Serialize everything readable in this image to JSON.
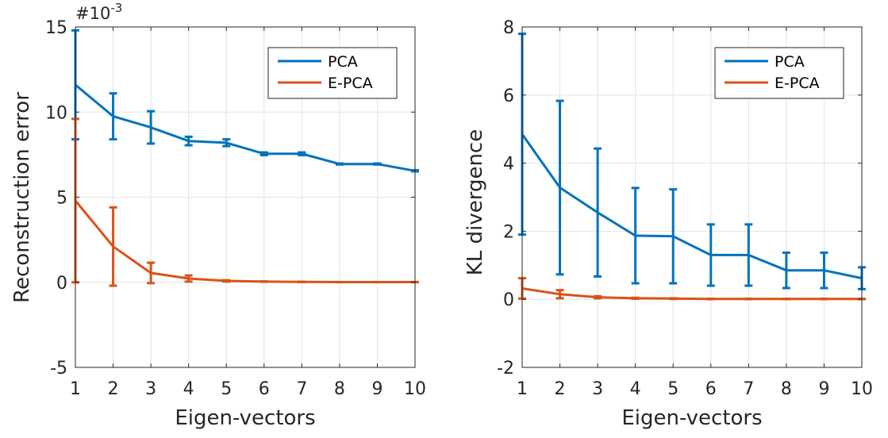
{
  "chart_data": [
    {
      "type": "line",
      "xlabel": "Eigen-vectors",
      "ylabel": "Reconstruction error",
      "exponent_label": {
        "base": "#10",
        "power": "-3"
      },
      "xlim": [
        1,
        10
      ],
      "ylim": [
        -5,
        15
      ],
      "xticks": [
        "1",
        "2",
        "3",
        "4",
        "5",
        "6",
        "7",
        "8",
        "9",
        "10"
      ],
      "yticks": [
        "-5",
        "0",
        "5",
        "10",
        "15"
      ],
      "ytick_values": [
        -5,
        0,
        5,
        10,
        15
      ],
      "grid": true,
      "legend_position": "top-right",
      "x": [
        1,
        2,
        3,
        4,
        5,
        6,
        7,
        8,
        9,
        10
      ],
      "series": [
        {
          "name": "PCA",
          "color": "#0072BD",
          "values": [
            11.6,
            9.75,
            9.1,
            8.3,
            8.2,
            7.55,
            7.55,
            6.95,
            6.95,
            6.55
          ],
          "errors": [
            3.2,
            1.35,
            0.95,
            0.25,
            0.2,
            0.08,
            0.08,
            0.03,
            0.03,
            0.03
          ]
        },
        {
          "name": "E-PCA",
          "color": "#D95319",
          "values": [
            4.8,
            2.1,
            0.55,
            0.22,
            0.08,
            0.04,
            0.02,
            0.01,
            0.01,
            0.01
          ],
          "errors": [
            4.8,
            2.3,
            0.6,
            0.18,
            0.04,
            0.01,
            0.01,
            0.005,
            0.005,
            0.005
          ]
        }
      ]
    },
    {
      "type": "line",
      "xlabel": "Eigen-vectors",
      "ylabel": "KL divergence",
      "xlim": [
        1,
        10
      ],
      "ylim": [
        -2,
        8
      ],
      "xticks": [
        "1",
        "2",
        "3",
        "4",
        "5",
        "6",
        "7",
        "8",
        "9",
        "10"
      ],
      "yticks": [
        "-2",
        "0",
        "2",
        "4",
        "6",
        "8"
      ],
      "ytick_values": [
        -2,
        0,
        2,
        4,
        6,
        8
      ],
      "grid": true,
      "legend_position": "top-right",
      "x": [
        1,
        2,
        3,
        4,
        5,
        6,
        7,
        8,
        9,
        10
      ],
      "series": [
        {
          "name": "PCA",
          "color": "#0072BD",
          "values": [
            4.85,
            3.28,
            2.55,
            1.87,
            1.85,
            1.3,
            1.3,
            0.85,
            0.85,
            0.62
          ],
          "errors": [
            2.95,
            2.55,
            1.88,
            1.4,
            1.38,
            0.9,
            0.9,
            0.52,
            0.52,
            0.32
          ]
        },
        {
          "name": "E-PCA",
          "color": "#D95319",
          "values": [
            0.32,
            0.15,
            0.06,
            0.03,
            0.02,
            0.01,
            0.01,
            0.01,
            0.01,
            0.01
          ],
          "errors": [
            0.3,
            0.12,
            0.03,
            0.015,
            0.01,
            0.005,
            0.005,
            0.005,
            0.005,
            0.005
          ]
        }
      ]
    }
  ]
}
